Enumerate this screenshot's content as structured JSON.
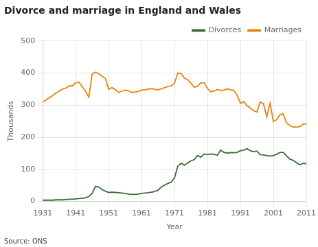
{
  "chart_data": {
    "type": "line",
    "title": "Divorce and marriage in England and Wales",
    "xlabel": "Year",
    "ylabel": "Thousands",
    "annotations": [
      "Source: ONS"
    ],
    "x": [
      1931,
      1932,
      1933,
      1934,
      1935,
      1936,
      1937,
      1938,
      1939,
      1940,
      1941,
      1942,
      1943,
      1944,
      1945,
      1946,
      1947,
      1948,
      1949,
      1950,
      1951,
      1952,
      1953,
      1954,
      1955,
      1956,
      1957,
      1958,
      1959,
      1960,
      1961,
      1962,
      1963,
      1964,
      1965,
      1966,
      1967,
      1968,
      1969,
      1970,
      1971,
      1972,
      1973,
      1974,
      1975,
      1976,
      1977,
      1978,
      1979,
      1980,
      1981,
      1982,
      1983,
      1984,
      1985,
      1986,
      1987,
      1988,
      1989,
      1990,
      1991,
      1992,
      1993,
      1994,
      1995,
      1996,
      1997,
      1998,
      1999,
      2000,
      2001,
      2002,
      2003,
      2004,
      2005,
      2006,
      2007,
      2008,
      2009,
      2010,
      2011
    ],
    "series": [
      {
        "name": "Divorces",
        "color": "#3A6B35",
        "values": [
          4,
          4,
          4,
          4,
          5,
          5,
          5,
          6,
          7,
          7,
          8,
          9,
          10,
          11,
          15,
          25,
          47,
          45,
          37,
          32,
          28,
          29,
          28,
          27,
          26,
          25,
          23,
          22,
          22,
          23,
          25,
          26,
          27,
          29,
          31,
          35,
          45,
          51,
          56,
          60,
          74,
          110,
          119,
          113,
          120,
          127,
          130,
          143,
          138,
          148,
          146,
          148,
          147,
          144,
          160,
          153,
          151,
          152,
          152,
          153,
          158,
          160,
          165,
          158,
          155,
          157,
          146,
          145,
          143,
          141,
          143,
          147,
          153,
          153,
          142,
          132,
          128,
          121,
          114,
          119,
          117
        ]
      },
      {
        "name": "Marriages",
        "color": "#E8820A",
        "values": [
          309,
          316,
          323,
          330,
          338,
          344,
          350,
          353,
          360,
          360,
          370,
          372,
          358,
          344,
          325,
          397,
          403,
          398,
          390,
          384,
          350,
          355,
          349,
          340,
          344,
          347,
          345,
          340,
          341,
          343,
          347,
          348,
          350,
          352,
          349,
          348,
          351,
          355,
          358,
          360,
          369,
          400,
          399,
          384,
          380,
          368,
          356,
          359,
          370,
          370,
          352,
          342,
          344,
          349,
          346,
          347,
          351,
          348,
          346,
          331,
          306,
          311,
          299,
          291,
          283,
          278,
          310,
          304,
          264,
          306,
          249,
          255,
          270,
          273,
          244,
          237,
          232,
          232,
          233,
          241,
          241
        ]
      }
    ],
    "xlim": [
      1931,
      2011
    ],
    "xticks": [
      1931,
      1941,
      1951,
      1961,
      1971,
      1981,
      1991,
      2001,
      2011
    ],
    "ylim": [
      0,
      500
    ],
    "yticks": [
      0,
      100,
      200,
      300,
      400,
      500
    ],
    "grid": true,
    "legend": "upper right"
  }
}
